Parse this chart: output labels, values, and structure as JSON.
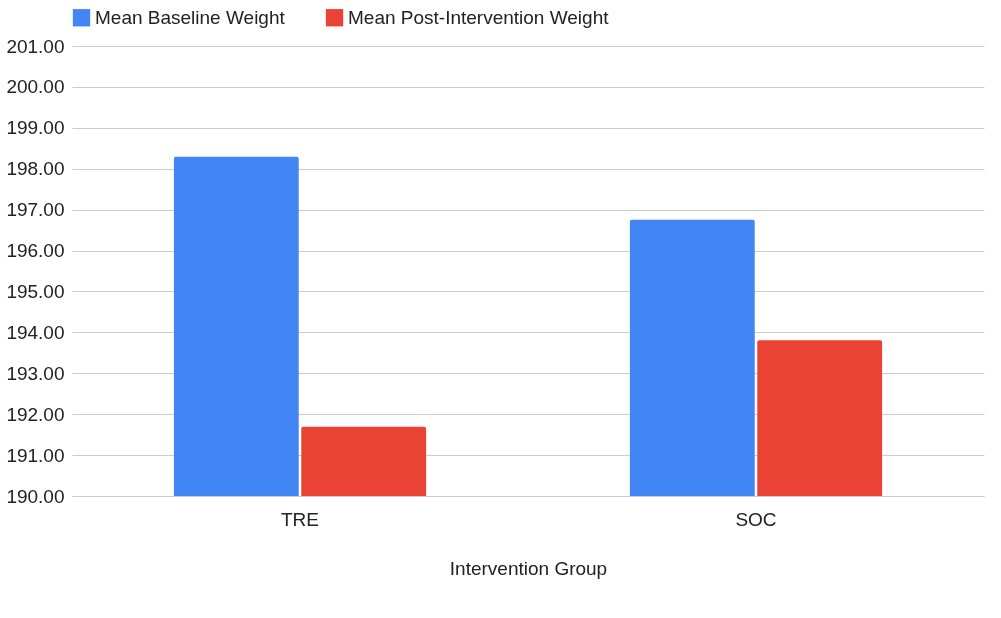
{
  "chart_data": {
    "type": "bar",
    "xlabel": "Intervention Group",
    "categories": [
      "TRE",
      "SOC"
    ],
    "series": [
      {
        "name": "Mean Baseline Weight",
        "color": "#4285f4",
        "values": [
          198.29,
          196.75
        ]
      },
      {
        "name": "Mean Post-Intervention Weight",
        "color": "#ea4335",
        "values": [
          191.69,
          193.81
        ]
      }
    ],
    "ylim": [
      190,
      201
    ],
    "yticks": [
      {
        "value": 190,
        "label": "190.00"
      },
      {
        "value": 191,
        "label": "191.00"
      },
      {
        "value": 192,
        "label": "192.00"
      },
      {
        "value": 193,
        "label": "193.00"
      },
      {
        "value": 194,
        "label": "194.00"
      },
      {
        "value": 195,
        "label": "195.00"
      },
      {
        "value": 196,
        "label": "196.00"
      },
      {
        "value": 197,
        "label": "197.00"
      },
      {
        "value": 198,
        "label": "198.00"
      },
      {
        "value": 199,
        "label": "199.00"
      },
      {
        "value": 200,
        "label": "200.00"
      },
      {
        "value": 201,
        "label": "201.00"
      }
    ],
    "grid": "y",
    "legend": "top"
  }
}
